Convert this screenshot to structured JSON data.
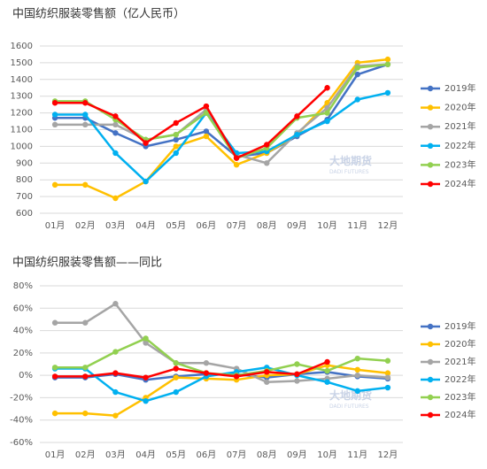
{
  "chart_data": [
    {
      "type": "line",
      "title": "中国纺织服装零售额（亿人民币）",
      "categories": [
        "01月",
        "02月",
        "03月",
        "04月",
        "05月",
        "06月",
        "07月",
        "08月",
        "09月",
        "10月",
        "11月",
        "12月"
      ],
      "ylim": [
        600,
        1600
      ],
      "yticks": [
        600,
        700,
        800,
        900,
        1000,
        1100,
        1200,
        1300,
        1400,
        1500,
        1600
      ],
      "grid": true,
      "legend": "right",
      "watermark": [
        "大地期货",
        "DADI FUTURES"
      ],
      "series": [
        {
          "name": "2019年",
          "color": "#4472c4",
          "values": [
            1170,
            1170,
            1080,
            1000,
            1040,
            1090,
            940,
            960,
            1060,
            1160,
            1430,
            1490
          ]
        },
        {
          "name": "2020年",
          "color": "#ffc000",
          "values": [
            770,
            770,
            690,
            790,
            1000,
            1060,
            890,
            960,
            1070,
            1260,
            1500,
            1520
          ]
        },
        {
          "name": "2021年",
          "color": "#a5a5a5",
          "values": [
            1130,
            1130,
            1130,
            1040,
            1070,
            1220,
            950,
            900,
            1080,
            1230,
            1480,
            1490
          ]
        },
        {
          "name": "2022年",
          "color": "#00b0f0",
          "values": [
            1190,
            1190,
            960,
            790,
            960,
            1200,
            960,
            970,
            1070,
            1150,
            1280,
            1320
          ]
        },
        {
          "name": "2023年",
          "color": "#92d050",
          "values": [
            1270,
            1270,
            1160,
            1040,
            1070,
            1200,
            930,
            990,
            1170,
            1200,
            1470,
            1490
          ]
        },
        {
          "name": "2024年",
          "color": "#ff0000",
          "values": [
            1260,
            1260,
            1180,
            1020,
            1140,
            1240,
            930,
            1010,
            1180,
            1350,
            null,
            null
          ]
        }
      ]
    },
    {
      "type": "line",
      "title": "中国纺织服装零售额——同比",
      "categories": [
        "01月",
        "02月",
        "03月",
        "04月",
        "05月",
        "06月",
        "07月",
        "08月",
        "09月",
        "10月",
        "11月",
        "12月"
      ],
      "ylim": [
        -60,
        80
      ],
      "yticks": [
        {
          "value": -60,
          "label": "-60%"
        },
        {
          "value": -40,
          "label": "-40%"
        },
        {
          "value": -20,
          "label": "-20%"
        },
        {
          "value": 0,
          "label": "0%"
        },
        {
          "value": 20,
          "label": "20%"
        },
        {
          "value": 40,
          "label": "40%"
        },
        {
          "value": 60,
          "label": "60%"
        },
        {
          "value": 80,
          "label": "80%"
        }
      ],
      "grid": true,
      "legend": "right",
      "watermark": [
        "大地期货",
        "DADI FUTURES"
      ],
      "series": [
        {
          "name": "2019年",
          "color": "#4472c4",
          "values": [
            -2,
            -2,
            1,
            -4,
            -1,
            1,
            1,
            -2,
            1,
            3,
            -1,
            -3
          ]
        },
        {
          "name": "2020年",
          "color": "#ffc000",
          "values": [
            -34,
            -34,
            -36,
            -20,
            -2,
            -3,
            -4,
            0,
            1,
            9,
            5,
            2
          ]
        },
        {
          "name": "2021年",
          "color": "#a5a5a5",
          "values": [
            47,
            47,
            64,
            29,
            11,
            11,
            6,
            -6,
            -5,
            -3,
            0,
            -2
          ]
        },
        {
          "name": "2022年",
          "color": "#00b0f0",
          "values": [
            6,
            6,
            -15,
            -23,
            -15,
            -1,
            3,
            7,
            0,
            -6,
            -14,
            -11
          ]
        },
        {
          "name": "2023年",
          "color": "#92d050",
          "values": [
            7,
            7,
            21,
            33,
            11,
            2,
            0,
            4,
            10,
            4,
            15,
            13
          ]
        },
        {
          "name": "2024年",
          "color": "#ff0000",
          "values": [
            -1,
            -1,
            2,
            -2,
            6,
            2,
            -1,
            3,
            1,
            12,
            null,
            null
          ]
        }
      ]
    }
  ]
}
